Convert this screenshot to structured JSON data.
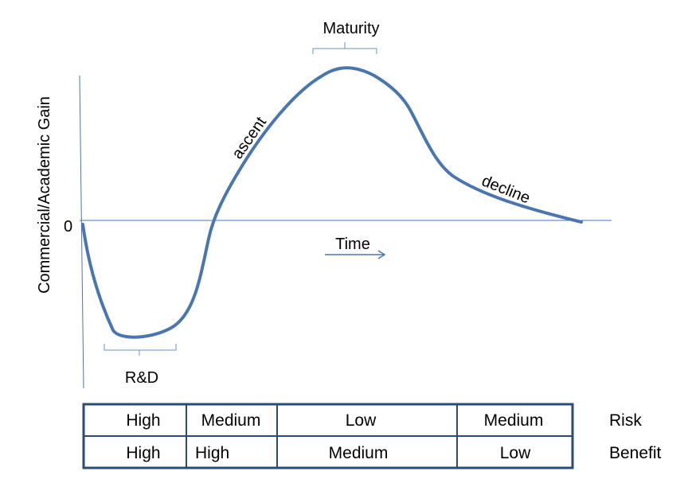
{
  "axes": {
    "y_label": "Commercial/Academic Gain",
    "zero_label": "0",
    "time_label": "Time"
  },
  "phases": {
    "rd": "R&D",
    "ascent": "ascent",
    "maturity": "Maturity",
    "decline": "decline"
  },
  "table": {
    "rows": [
      {
        "label": "Risk",
        "cells": [
          "High",
          "Medium",
          "Low",
          "Medium"
        ]
      },
      {
        "label": "Benefit",
        "cells": [
          "High",
          "High",
          "Medium",
          "Low"
        ]
      }
    ]
  },
  "colors": {
    "curve": "#4a76b0",
    "axis": "#4a76b0",
    "table_border": "#2c4a78"
  }
}
